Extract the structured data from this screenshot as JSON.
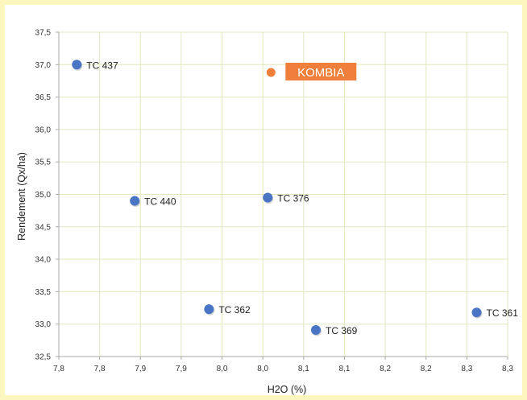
{
  "chart_data": {
    "type": "scatter",
    "title": "",
    "xlabel": "H2O (%)",
    "ylabel": "Rendement (Qx/ha)",
    "xlim": [
      7.75,
      8.3
    ],
    "ylim": [
      32.5,
      37.5
    ],
    "x_tick_values": [
      7.75,
      7.8,
      7.85,
      7.9,
      7.95,
      8.0,
      8.05,
      8.1,
      8.15,
      8.2,
      8.25,
      8.3
    ],
    "x_tick_labels": [
      "7,8",
      "7,8",
      "7,9",
      "7,9",
      "8,0",
      "8,0",
      "8,1",
      "8,1",
      "8,2",
      "8,2",
      "8,3",
      "8,3"
    ],
    "y_tick_values": [
      32.5,
      33.0,
      33.5,
      34.0,
      34.5,
      35.0,
      35.5,
      36.0,
      36.5,
      37.0,
      37.5
    ],
    "y_tick_labels": [
      "32,5",
      "33,0",
      "33,5",
      "34,0",
      "34,5",
      "35,0",
      "35,5",
      "36,0",
      "36,5",
      "37,0",
      "37,5"
    ],
    "grid": {
      "x": true,
      "y": true
    },
    "points": [
      {
        "label": "TC 437",
        "x": 7.772,
        "y": 37.0,
        "highlight": false
      },
      {
        "label": "KOMBIA",
        "x": 8.01,
        "y": 36.88,
        "highlight": true
      },
      {
        "label": "TC 440",
        "x": 7.843,
        "y": 34.9,
        "highlight": false
      },
      {
        "label": "TC 376",
        "x": 8.006,
        "y": 34.95,
        "highlight": false
      },
      {
        "label": "TC 362",
        "x": 7.934,
        "y": 33.23,
        "highlight": false
      },
      {
        "label": "TC 369",
        "x": 8.065,
        "y": 32.91,
        "highlight": false
      },
      {
        "label": "TC 361",
        "x": 8.262,
        "y": 33.18,
        "highlight": false
      }
    ],
    "colors": {
      "point": "#4a74c4",
      "highlight_point": "#f07f3c",
      "highlight_label_bg": "#f07f3c",
      "highlight_label_text": "#ffffff",
      "grid": "#e3e7bd",
      "axis": "#a9a9a9",
      "frame_border": "#fcf7bf"
    }
  }
}
